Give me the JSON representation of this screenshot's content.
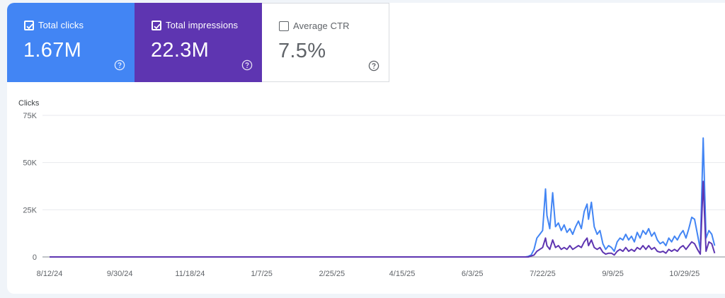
{
  "cards": {
    "clicks": {
      "label": "Total clicks",
      "value": "1.67M",
      "checked": true,
      "color": "#4285f4"
    },
    "impressions": {
      "label": "Total impressions",
      "value": "22.3M",
      "checked": true,
      "color": "#5e35b1"
    },
    "ctr": {
      "label": "Average CTR",
      "value": "7.5%",
      "checked": false
    }
  },
  "chart_data": {
    "type": "line",
    "ylabel": "Clicks",
    "ylim": [
      0,
      75000
    ],
    "yticks": [
      0,
      25000,
      50000,
      75000
    ],
    "ytick_labels": [
      "0",
      "25K",
      "50K",
      "75K"
    ],
    "xtick_labels": [
      "8/12/24",
      "9/30/24",
      "11/18/24",
      "1/7/25",
      "2/25/25",
      "4/15/25",
      "6/3/25",
      "7/22/25",
      "9/9/25",
      "10/29/25"
    ],
    "x_start": "8/12/24",
    "x_end": "11/10/25",
    "grid": true,
    "series": [
      {
        "name": "Total clicks",
        "color": "#4285f4",
        "points": [
          [
            "8/12/24",
            0
          ],
          [
            "6/3/25",
            0
          ],
          [
            "7/10/25",
            0
          ],
          [
            "7/12/25",
            300
          ],
          [
            "7/14/25",
            1000
          ],
          [
            "7/16/25",
            4000
          ],
          [
            "7/18/25",
            10000
          ],
          [
            "7/20/25",
            12000
          ],
          [
            "7/22/25",
            14000
          ],
          [
            "7/24/25",
            36000
          ],
          [
            "7/25/25",
            22000
          ],
          [
            "7/27/25",
            15000
          ],
          [
            "7/29/25",
            34000
          ],
          [
            "7/31/25",
            16000
          ],
          [
            "8/2/25",
            18000
          ],
          [
            "8/4/25",
            14000
          ],
          [
            "8/6/25",
            17000
          ],
          [
            "8/8/25",
            13000
          ],
          [
            "8/10/25",
            15000
          ],
          [
            "8/12/25",
            12000
          ],
          [
            "8/14/25",
            16000
          ],
          [
            "8/16/25",
            19000
          ],
          [
            "8/18/25",
            15000
          ],
          [
            "8/20/25",
            24000
          ],
          [
            "8/22/25",
            28000
          ],
          [
            "8/23/25",
            20000
          ],
          [
            "8/25/25",
            29000
          ],
          [
            "8/27/25",
            16000
          ],
          [
            "8/29/25",
            12000
          ],
          [
            "8/31/25",
            14000
          ],
          [
            "9/2/25",
            7000
          ],
          [
            "9/4/25",
            4000
          ],
          [
            "9/6/25",
            6000
          ],
          [
            "9/8/25",
            5000
          ],
          [
            "9/10/25",
            3000
          ],
          [
            "9/12/25",
            8000
          ],
          [
            "9/14/25",
            10000
          ],
          [
            "9/16/25",
            9000
          ],
          [
            "9/18/25",
            12000
          ],
          [
            "9/20/25",
            9000
          ],
          [
            "9/22/25",
            11000
          ],
          [
            "9/24/25",
            8000
          ],
          [
            "9/26/25",
            13000
          ],
          [
            "9/28/25",
            10000
          ],
          [
            "9/30/25",
            14000
          ],
          [
            "10/2/25",
            12000
          ],
          [
            "10/4/25",
            15000
          ],
          [
            "10/6/25",
            11000
          ],
          [
            "10/8/25",
            13000
          ],
          [
            "10/10/25",
            9000
          ],
          [
            "10/12/25",
            7000
          ],
          [
            "10/14/25",
            8000
          ],
          [
            "10/16/25",
            6000
          ],
          [
            "10/18/25",
            10000
          ],
          [
            "10/20/25",
            8000
          ],
          [
            "10/22/25",
            11000
          ],
          [
            "10/24/25",
            9000
          ],
          [
            "10/26/25",
            12000
          ],
          [
            "10/28/25",
            14000
          ],
          [
            "10/30/25",
            10000
          ],
          [
            "11/1/25",
            15000
          ],
          [
            "11/3/25",
            21000
          ],
          [
            "11/5/25",
            20000
          ],
          [
            "11/7/25",
            12000
          ],
          [
            "11/9/25",
            4000
          ],
          [
            "11/11/25",
            63000
          ],
          [
            "11/13/25",
            10000
          ],
          [
            "11/15/25",
            14000
          ],
          [
            "11/17/25",
            12000
          ],
          [
            "11/19/25",
            6000
          ]
        ]
      },
      {
        "name": "Total impressions",
        "color": "#5e35b1",
        "points": [
          [
            "8/12/24",
            0
          ],
          [
            "6/3/25",
            0
          ],
          [
            "7/12/25",
            0
          ],
          [
            "7/16/25",
            1000
          ],
          [
            "7/18/25",
            3000
          ],
          [
            "7/20/25",
            4000
          ],
          [
            "7/22/25",
            5000
          ],
          [
            "7/24/25",
            10000
          ],
          [
            "7/25/25",
            6000
          ],
          [
            "7/27/25",
            4000
          ],
          [
            "7/29/25",
            9000
          ],
          [
            "7/31/25",
            5000
          ],
          [
            "8/2/25",
            6000
          ],
          [
            "8/4/25",
            4000
          ],
          [
            "8/6/25",
            5000
          ],
          [
            "8/8/25",
            4000
          ],
          [
            "8/10/25",
            6000
          ],
          [
            "8/12/25",
            4000
          ],
          [
            "8/14/25",
            5000
          ],
          [
            "8/16/25",
            6000
          ],
          [
            "8/18/25",
            5000
          ],
          [
            "8/20/25",
            8000
          ],
          [
            "8/22/25",
            10000
          ],
          [
            "8/23/25",
            6000
          ],
          [
            "8/25/25",
            9000
          ],
          [
            "8/27/25",
            5000
          ],
          [
            "8/29/25",
            4000
          ],
          [
            "8/31/25",
            5000
          ],
          [
            "9/2/25",
            2500
          ],
          [
            "9/4/25",
            1500
          ],
          [
            "9/6/25",
            2000
          ],
          [
            "9/8/25",
            2000
          ],
          [
            "9/10/25",
            1000
          ],
          [
            "9/12/25",
            3000
          ],
          [
            "9/14/25",
            4000
          ],
          [
            "9/16/25",
            3000
          ],
          [
            "9/18/25",
            5000
          ],
          [
            "9/20/25",
            3000
          ],
          [
            "9/22/25",
            4000
          ],
          [
            "9/24/25",
            3000
          ],
          [
            "9/26/25",
            5000
          ],
          [
            "9/28/25",
            4000
          ],
          [
            "9/30/25",
            6000
          ],
          [
            "10/2/25",
            4000
          ],
          [
            "10/4/25",
            6000
          ],
          [
            "10/6/25",
            4000
          ],
          [
            "10/8/25",
            5000
          ],
          [
            "10/10/25",
            3000
          ],
          [
            "10/12/25",
            2500
          ],
          [
            "10/14/25",
            3000
          ],
          [
            "10/16/25",
            2000
          ],
          [
            "10/18/25",
            4000
          ],
          [
            "10/20/25",
            3000
          ],
          [
            "10/22/25",
            4000
          ],
          [
            "10/24/25",
            3000
          ],
          [
            "10/26/25",
            5000
          ],
          [
            "10/28/25",
            6000
          ],
          [
            "10/30/25",
            4000
          ],
          [
            "11/1/25",
            6000
          ],
          [
            "11/3/25",
            8000
          ],
          [
            "11/5/25",
            7000
          ],
          [
            "11/7/25",
            4000
          ],
          [
            "11/9/25",
            1500
          ],
          [
            "11/11/25",
            40000
          ],
          [
            "11/13/25",
            3000
          ],
          [
            "11/15/25",
            8000
          ],
          [
            "11/17/25",
            7000
          ],
          [
            "11/19/25",
            2000
          ]
        ]
      }
    ]
  }
}
